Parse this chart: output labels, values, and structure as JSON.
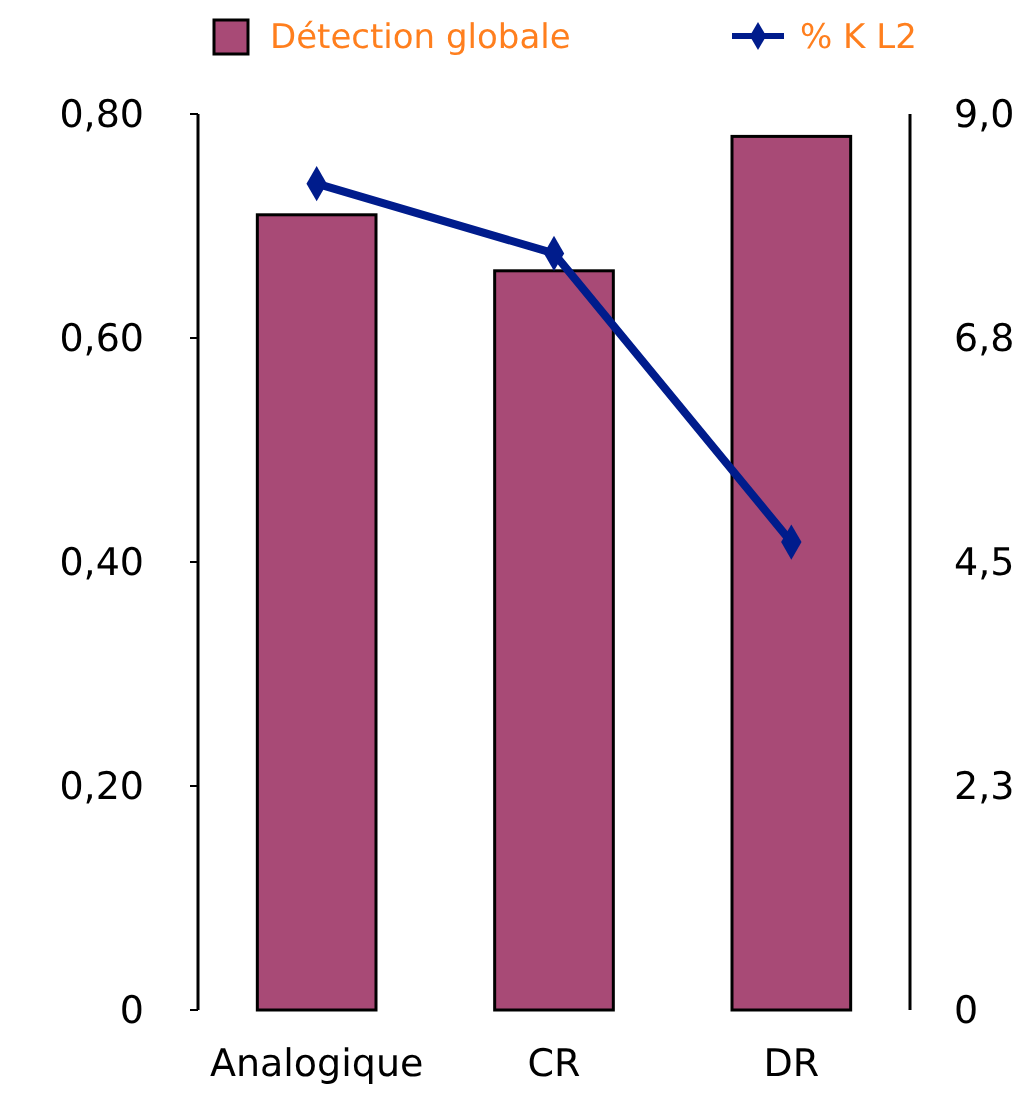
{
  "chart_data": {
    "type": "bar",
    "categories": [
      "Analogique",
      "CR",
      "DR"
    ],
    "series": [
      {
        "name": "Détection globale",
        "color": "#a84a76",
        "values": [
          0.71,
          0.66,
          0.78
        ]
      },
      {
        "name": "% K L2",
        "type": "line",
        "axis": "y2",
        "color": "#001c8c",
        "values": [
          8.3,
          7.6,
          4.7
        ],
        "marker": "diamond"
      }
    ],
    "ylim": [
      0,
      0.8
    ],
    "yticks": [
      {
        "value": 0,
        "label": "0"
      },
      {
        "value": 0.2,
        "label": "0,20"
      },
      {
        "value": 0.4,
        "label": "0,40"
      },
      {
        "value": 0.6,
        "label": "0,60"
      },
      {
        "value": 0.8,
        "label": "0,80"
      }
    ],
    "y2lim": [
      0,
      9
    ],
    "y2ticks": [
      {
        "value": 0,
        "label": "0"
      },
      {
        "value": 2.25,
        "label": "2,3"
      },
      {
        "value": 4.5,
        "label": "4,5"
      },
      {
        "value": 6.75,
        "label": "6,8"
      },
      {
        "value": 9,
        "label": "9,0"
      }
    ],
    "legend": "top",
    "grid": false
  }
}
